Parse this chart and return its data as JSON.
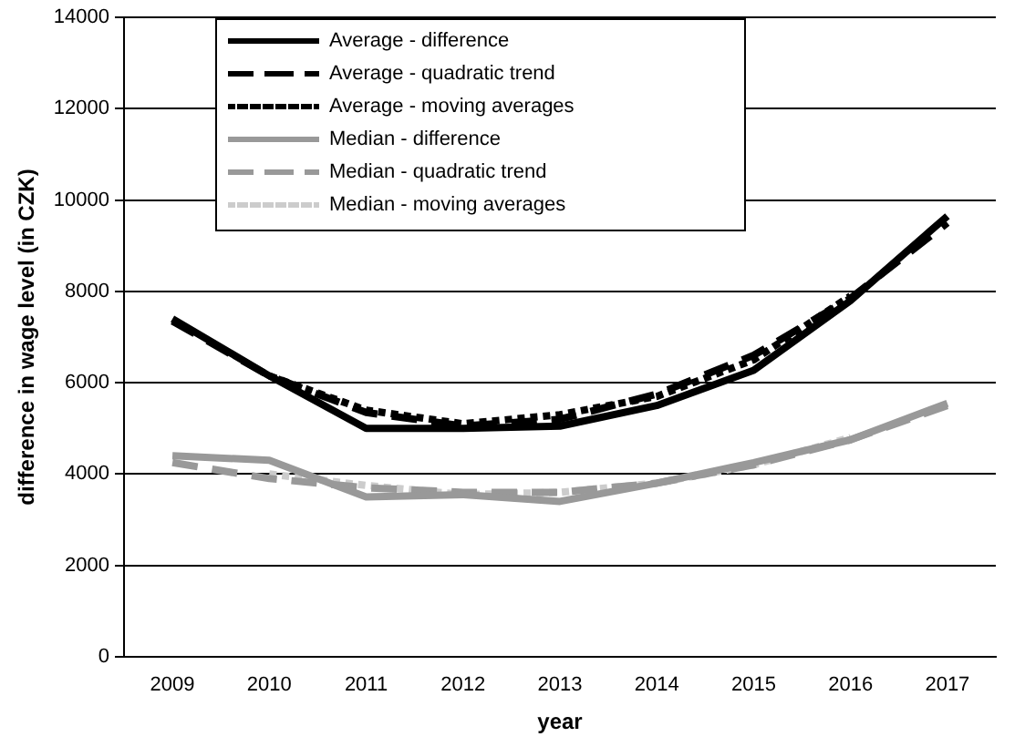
{
  "chart_data": {
    "type": "line",
    "xlabel": "year",
    "ylabel": "difference in wage level (in CZK)",
    "categories": [
      "2009",
      "2010",
      "2011",
      "2012",
      "2013",
      "2014",
      "2015",
      "2016",
      "2017"
    ],
    "ylim": [
      0,
      14000
    ],
    "yticks": [
      0,
      2000,
      4000,
      6000,
      8000,
      10000,
      12000,
      14000
    ],
    "grid": "y",
    "legend": "top",
    "marker": "none",
    "series": [
      {
        "name": "Average - difference",
        "color": "#000000",
        "line_style": "solid",
        "values": [
          7400,
          6150,
          5000,
          5000,
          5050,
          5500,
          6270,
          7800,
          9650
        ]
      },
      {
        "name": "Average - quadratic trend",
        "color": "#000000",
        "line_style": "dashed",
        "values": [
          7350,
          6150,
          5350,
          5050,
          5200,
          5750,
          6600,
          7850,
          9500
        ]
      },
      {
        "name": "Average - moving averages",
        "color": "#000000",
        "line_style": "dotted",
        "values": [
          null,
          6150,
          5400,
          5100,
          5300,
          5700,
          6500,
          7900,
          null
        ]
      },
      {
        "name": "Median - difference",
        "color": "#999999",
        "line_style": "solid",
        "values": [
          4400,
          4300,
          3500,
          3550,
          3400,
          3800,
          4250,
          4750,
          5550
        ]
      },
      {
        "name": "Median - quadratic trend",
        "color": "#999999",
        "line_style": "dashed",
        "values": [
          4250,
          3900,
          3700,
          3600,
          3600,
          3800,
          4200,
          4750,
          5500
        ]
      },
      {
        "name": "Median - moving averages",
        "color": "#cccccc",
        "line_style": "dotted",
        "values": [
          null,
          4000,
          3750,
          3550,
          3600,
          3800,
          4200,
          4800,
          null
        ]
      }
    ]
  }
}
